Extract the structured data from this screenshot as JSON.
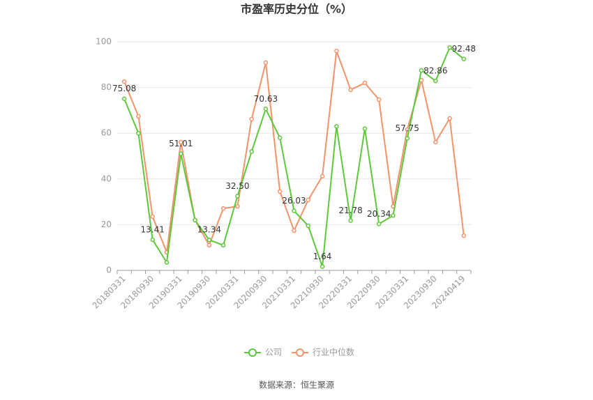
{
  "chart_data": {
    "type": "line",
    "title": "市盈率历史分位（%）",
    "categories": [
      "20180331",
      null,
      "20180930",
      null,
      "20190331",
      null,
      "20190930",
      null,
      "20200331",
      null,
      "20200930",
      null,
      "20210331",
      null,
      "20210930",
      null,
      "20220331",
      null,
      "20220930",
      null,
      "20230331",
      null,
      "20230930",
      null,
      "20240419"
    ],
    "series": [
      {
        "name": "公司",
        "color": "#5cc83a",
        "values": [
          75.08,
          60,
          13.41,
          3.5,
          51.01,
          22,
          13.34,
          11,
          32.5,
          52,
          70.63,
          58,
          26.03,
          19.5,
          1.64,
          63,
          21.78,
          62,
          20.34,
          24,
          57.75,
          87.5,
          82.86,
          97.5,
          92.48
        ],
        "value_labels": [
          "75.08",
          null,
          "13.41",
          null,
          "51.01",
          null,
          "13.34",
          null,
          "32.50",
          null,
          "70.63",
          null,
          "26.03",
          null,
          "1.64",
          null,
          "21.78",
          null,
          "20.34",
          null,
          "57.75",
          null,
          "82.86",
          null,
          "92.48"
        ]
      },
      {
        "name": "行业中位数",
        "color": "#f4936a",
        "values": [
          82.6,
          67.4,
          23.5,
          7.9,
          56.1,
          22,
          11,
          27.1,
          28,
          66.2,
          90.9,
          34.5,
          17.4,
          30.8,
          41.2,
          96,
          79,
          82,
          74.7,
          28,
          61.6,
          83.2,
          56.1,
          66.5,
          15.2
        ]
      }
    ],
    "ylim": [
      0,
      100
    ],
    "yticks": [
      0,
      20,
      40,
      60,
      80,
      100
    ],
    "grid": true,
    "source": "数据来源：恒生聚源"
  }
}
